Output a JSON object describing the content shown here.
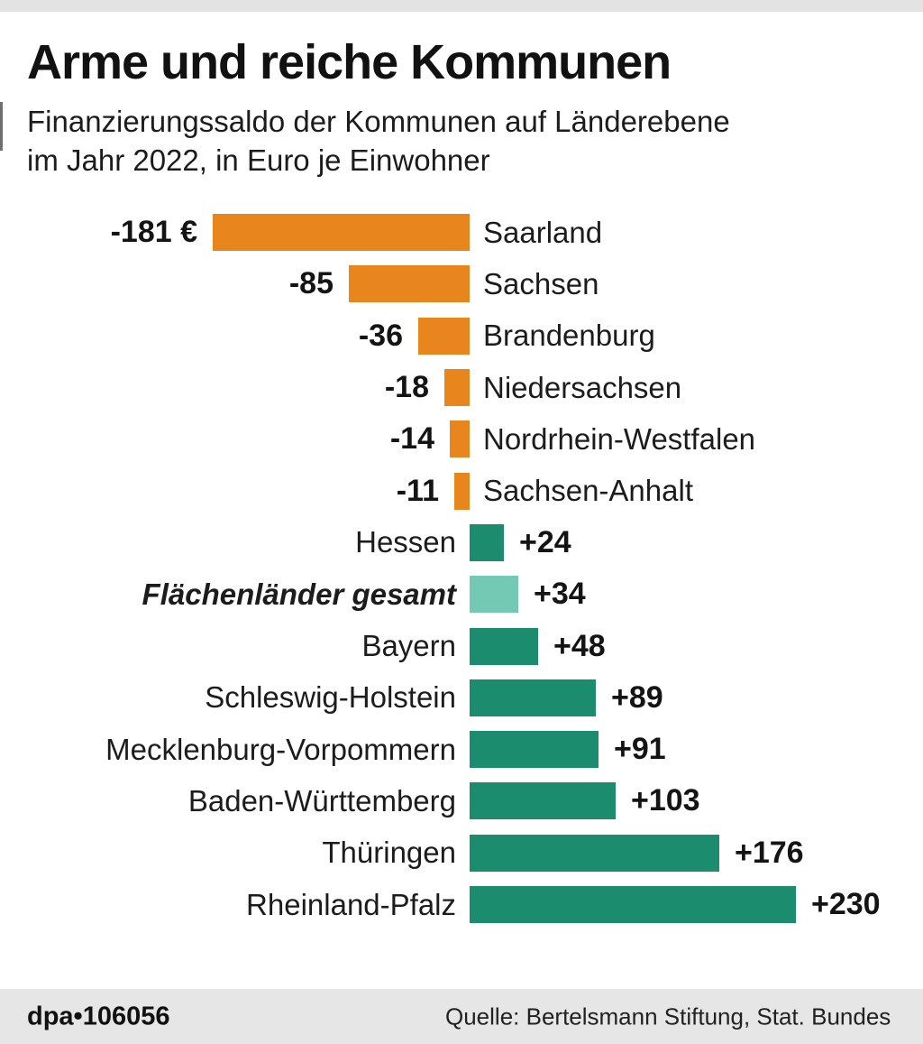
{
  "page": {
    "title": "Arme und reiche Kommunen",
    "subtitle_line1": "Finanzierungssaldo der Kommunen auf Länderebene",
    "subtitle_line2": "im Jahr 2022, in Euro je Einwohner"
  },
  "chart_data": {
    "type": "bar",
    "orientation": "horizontal-diverging",
    "title": "Arme und reiche Kommunen",
    "subtitle": "Finanzierungssaldo der Kommunen auf Länderebene im Jahr 2022, in Euro je Einwohner",
    "unit": "Euro je Einwohner",
    "baseline_value": 0,
    "categories": [
      "Saarland",
      "Sachsen",
      "Brandenburg",
      "Niedersachsen",
      "Nordrhein-Westfalen",
      "Sachsen-Anhalt",
      "Hessen",
      "Flächenländer gesamt",
      "Bayern",
      "Schleswig-Holstein",
      "Mecklenburg-Vorpommern",
      "Baden-Württemberg",
      "Thüringen",
      "Rheinland-Pfalz"
    ],
    "values": [
      -181,
      -85,
      -36,
      -18,
      -14,
      -11,
      24,
      34,
      48,
      89,
      91,
      103,
      176,
      230
    ],
    "colors": {
      "negative": "#E8851C",
      "positive": "#1B8C6E",
      "total": "#74C9B4"
    },
    "entries": [
      {
        "name": "Saarland",
        "value": -181,
        "display_value": "-181 €",
        "color": "negative",
        "emphasis": false
      },
      {
        "name": "Sachsen",
        "value": -85,
        "display_value": "-85",
        "color": "negative",
        "emphasis": false
      },
      {
        "name": "Brandenburg",
        "value": -36,
        "display_value": "-36",
        "color": "negative",
        "emphasis": false
      },
      {
        "name": "Niedersachsen",
        "value": -18,
        "display_value": "-18",
        "color": "negative",
        "emphasis": false
      },
      {
        "name": "Nordrhein-Westfalen",
        "value": -14,
        "display_value": "-14",
        "color": "negative",
        "emphasis": false
      },
      {
        "name": "Sachsen-Anhalt",
        "value": -11,
        "display_value": "-11",
        "color": "negative",
        "emphasis": false
      },
      {
        "name": "Hessen",
        "value": 24,
        "display_value": "+24",
        "color": "positive",
        "emphasis": false
      },
      {
        "name": "Flächenländer gesamt",
        "value": 34,
        "display_value": "+34",
        "color": "total",
        "emphasis": true
      },
      {
        "name": "Bayern",
        "value": 48,
        "display_value": "+48",
        "color": "positive",
        "emphasis": false
      },
      {
        "name": "Schleswig-Holstein",
        "value": 89,
        "display_value": "+89",
        "color": "positive",
        "emphasis": false
      },
      {
        "name": "Mecklenburg-Vorpommern",
        "value": 91,
        "display_value": "+91",
        "color": "positive",
        "emphasis": false
      },
      {
        "name": "Baden-Württemberg",
        "value": 103,
        "display_value": "+103",
        "color": "positive",
        "emphasis": false
      },
      {
        "name": "Thüringen",
        "value": 176,
        "display_value": "+176",
        "color": "positive",
        "emphasis": false
      },
      {
        "name": "Rheinland-Pfalz",
        "value": 230,
        "display_value": "+230",
        "color": "positive",
        "emphasis": false
      }
    ]
  },
  "footer": {
    "id_label": "dpa•106056",
    "source": "Quelle: Bertelsmann Stiftung, Stat. Bundes"
  }
}
